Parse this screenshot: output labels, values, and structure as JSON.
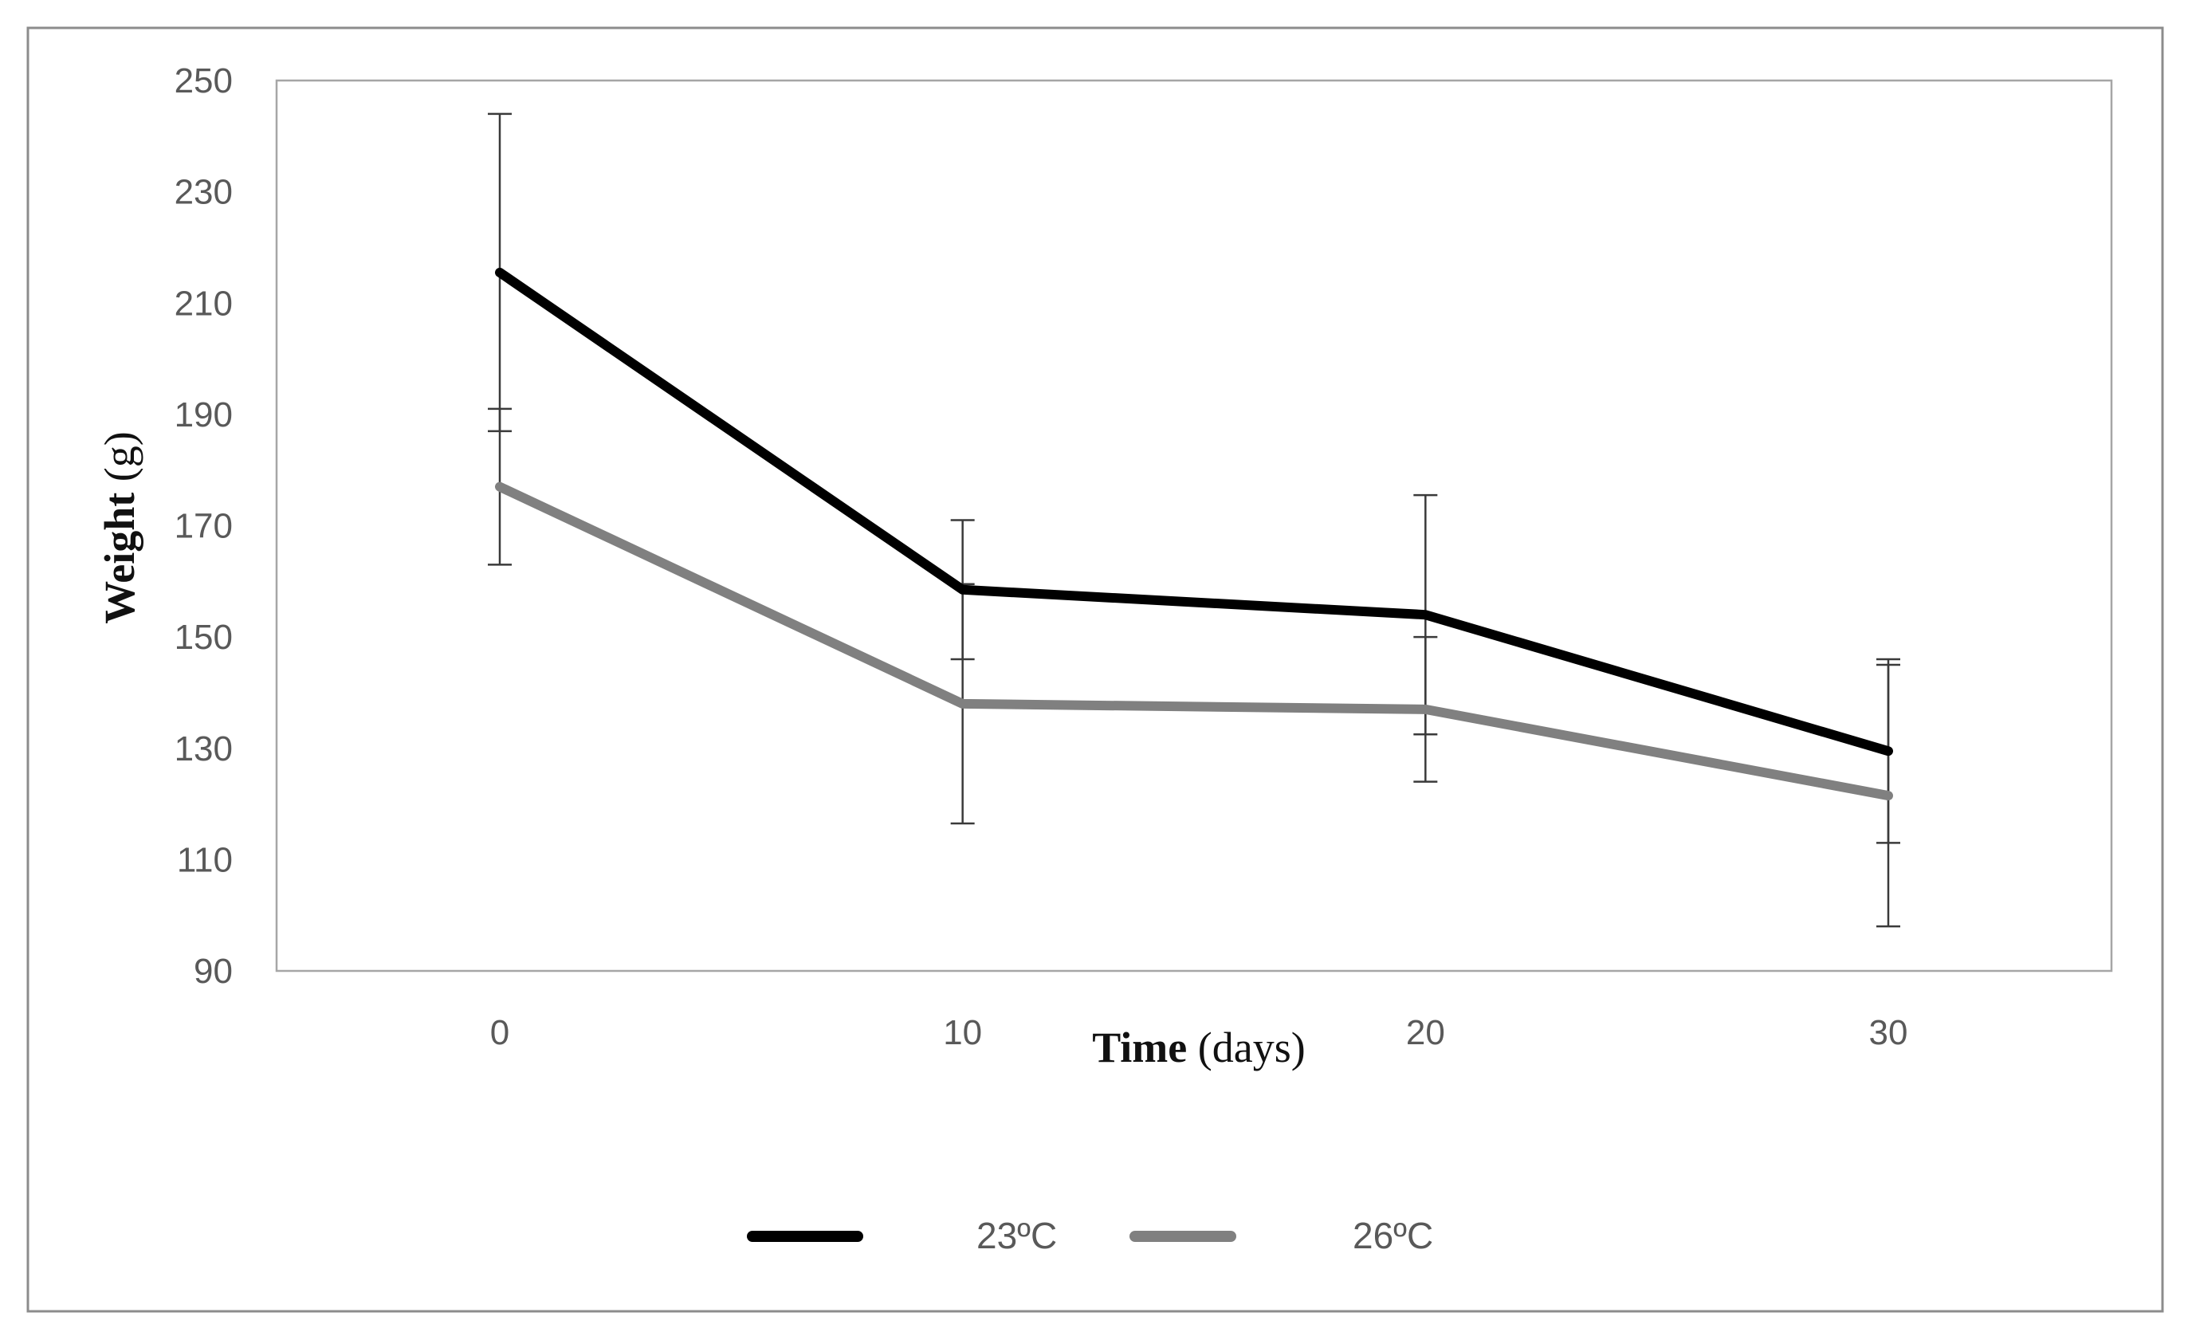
{
  "chart_data": {
    "type": "line",
    "title": "",
    "x": [
      0,
      10,
      20,
      30
    ],
    "x_tick_labels": [
      "0",
      "10",
      "20",
      "30"
    ],
    "xlabel": {
      "bold": "Time",
      "rest": " (days)"
    },
    "ylabel": {
      "bold": "Weight",
      "rest": " (g)"
    },
    "ylim": [
      90,
      250
    ],
    "y_ticks": [
      90,
      110,
      130,
      150,
      170,
      190,
      210,
      230,
      250
    ],
    "grid": false,
    "legend_position": "bottom-center",
    "series": [
      {
        "name": "23ºC",
        "color": "#000000",
        "values": [
          215.5,
          158.5,
          154,
          129.5
        ],
        "error": [
          28.5,
          12.5,
          21.5,
          16.5
        ]
      },
      {
        "name": "26ºC",
        "color": "#808080",
        "values": [
          177,
          138,
          137,
          121.5
        ],
        "error": [
          14,
          21.5,
          13,
          23.5
        ]
      }
    ]
  }
}
